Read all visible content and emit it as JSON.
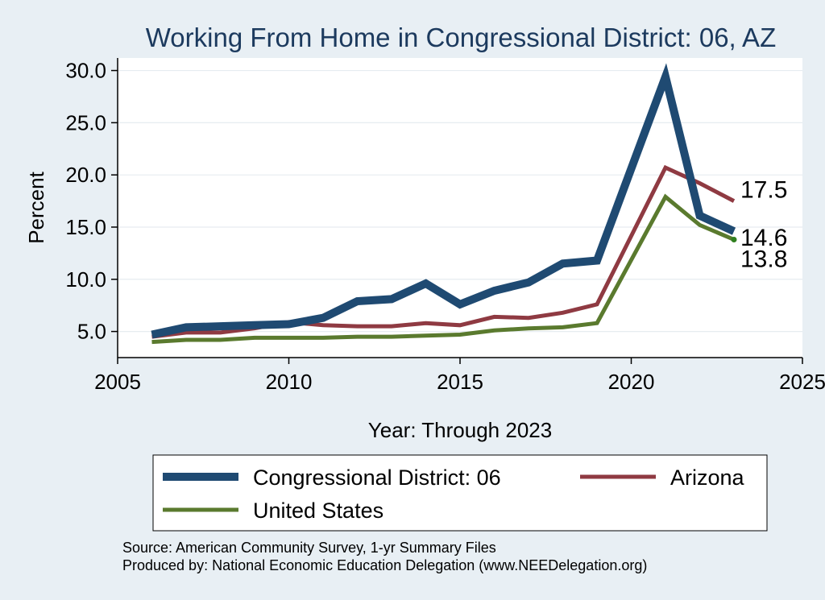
{
  "chart_data": {
    "type": "line",
    "title": "Working From Home in Congressional District: 06, AZ",
    "xlabel": "Year: Through 2023",
    "ylabel": "Percent",
    "xlim": [
      2005,
      2025
    ],
    "ylim": [
      2.5,
      31.2
    ],
    "xticks": [
      2005,
      2010,
      2015,
      2020,
      2025
    ],
    "yticks": [
      "5.0",
      "10.0",
      "15.0",
      "20.0",
      "25.0",
      "30.0"
    ],
    "grid": true,
    "legend_position": "bottom",
    "series": [
      {
        "name": "Congressional District: 06",
        "color": "#1f4a72",
        "x": [
          2006,
          2007,
          2008,
          2009,
          2010,
          2011,
          2012,
          2013,
          2014,
          2015,
          2016,
          2017,
          2018,
          2019,
          2021,
          2022,
          2023
        ],
        "y": [
          4.7,
          5.4,
          5.5,
          5.6,
          5.7,
          6.3,
          7.9,
          8.1,
          9.6,
          7.6,
          8.9,
          9.7,
          11.5,
          11.8,
          29.4,
          16.1,
          14.6
        ],
        "end_label": "14.6"
      },
      {
        "name": "Arizona",
        "color": "#8f3a42",
        "x": [
          2006,
          2007,
          2008,
          2009,
          2010,
          2011,
          2012,
          2013,
          2014,
          2015,
          2016,
          2017,
          2018,
          2019,
          2021,
          2022,
          2023
        ],
        "y": [
          4.5,
          4.9,
          4.9,
          5.3,
          5.9,
          5.6,
          5.5,
          5.5,
          5.8,
          5.6,
          6.4,
          6.3,
          6.8,
          7.6,
          20.7,
          19.2,
          17.5
        ],
        "end_label": "17.5"
      },
      {
        "name": "United States",
        "color": "#5a7a2e",
        "x": [
          2006,
          2007,
          2008,
          2009,
          2010,
          2011,
          2012,
          2013,
          2014,
          2015,
          2016,
          2017,
          2018,
          2019,
          2021,
          2022,
          2023
        ],
        "y": [
          4.0,
          4.2,
          4.2,
          4.4,
          4.4,
          4.4,
          4.5,
          4.5,
          4.6,
          4.7,
          5.1,
          5.3,
          5.4,
          5.8,
          17.9,
          15.2,
          13.8
        ],
        "end_label": "13.8"
      }
    ]
  },
  "footer": {
    "source": "Source: American Community Survey, 1-yr Summary Files",
    "produced_by": "Produced by: National Economic Education Delegation (www.NEEDelegation.org)"
  }
}
